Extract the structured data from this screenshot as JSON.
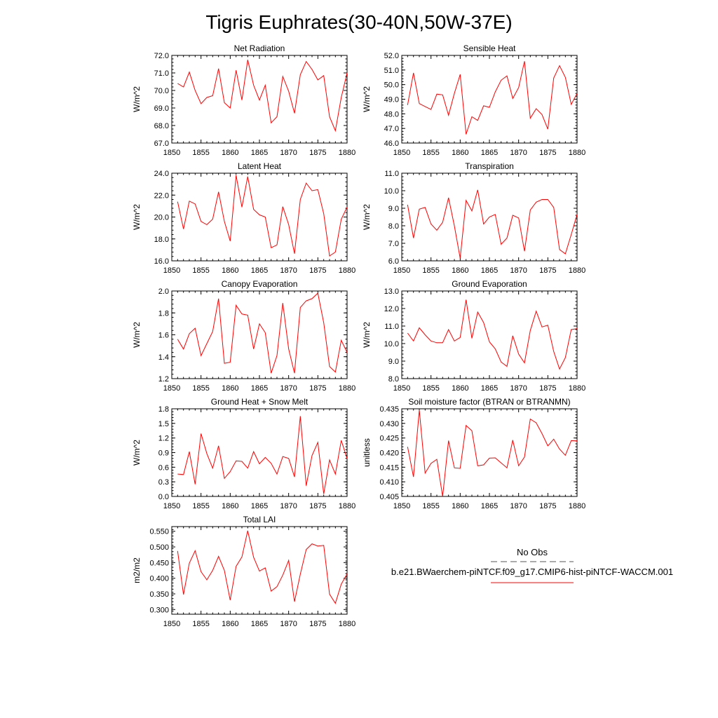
{
  "figure_title": "Tigris Euphrates(30-40N,50W-37E)",
  "legend": {
    "obs_label": "No Obs",
    "obs_color": "#555555",
    "model_label": "b.e21.BWaerchem-piNTCF.f09_g17.CMIP6-hist-piNTCF-WACCM.001",
    "model_color": "#ff0000"
  },
  "chart_data": [
    {
      "type": "line",
      "title": "Net Radiation",
      "ylabel": "W/m^2",
      "xlim": [
        1850,
        1880
      ],
      "ylim": [
        67.0,
        72.0
      ],
      "xticks": [
        "1850",
        "1855",
        "1860",
        "1865",
        "1870",
        "1875",
        "1880"
      ],
      "yticks": [
        "67.0",
        "68.0",
        "69.0",
        "70.0",
        "71.0",
        "72.0"
      ],
      "series": [
        {
          "color": "#ff0000",
          "x": [
            1851,
            1852,
            1853,
            1854,
            1855,
            1856,
            1857,
            1858,
            1859,
            1860,
            1861,
            1862,
            1863,
            1864,
            1865,
            1866,
            1867,
            1868,
            1869,
            1870,
            1871,
            1872,
            1873,
            1874,
            1875,
            1876,
            1877,
            1878,
            1879,
            1880
          ],
          "values": [
            70.4,
            70.2,
            71.05,
            70.0,
            69.25,
            69.6,
            69.7,
            71.25,
            69.3,
            69.0,
            71.15,
            69.45,
            71.75,
            70.3,
            69.45,
            70.3,
            68.15,
            68.5,
            70.8,
            69.95,
            68.7,
            70.9,
            71.65,
            71.2,
            70.6,
            70.85,
            68.5,
            67.7,
            69.6,
            71.0
          ]
        }
      ]
    },
    {
      "type": "line",
      "title": "Sensible Heat",
      "ylabel": "W/m^2",
      "xlim": [
        1850,
        1880
      ],
      "ylim": [
        46.0,
        52.0
      ],
      "xticks": [
        "1850",
        "1855",
        "1860",
        "1865",
        "1870",
        "1875",
        "1880"
      ],
      "yticks": [
        "46.0",
        "47.0",
        "48.0",
        "49.0",
        "50.0",
        "51.0",
        "52.0"
      ],
      "series": [
        {
          "color": "#ff0000",
          "x": [
            1851,
            1852,
            1853,
            1854,
            1855,
            1856,
            1857,
            1858,
            1859,
            1860,
            1861,
            1862,
            1863,
            1864,
            1865,
            1866,
            1867,
            1868,
            1869,
            1870,
            1871,
            1872,
            1873,
            1874,
            1875,
            1876,
            1877,
            1878,
            1879,
            1880
          ],
          "values": [
            48.6,
            50.8,
            48.7,
            48.5,
            48.3,
            49.35,
            49.3,
            47.9,
            49.4,
            50.7,
            46.6,
            47.8,
            47.55,
            48.55,
            48.45,
            49.5,
            50.3,
            50.6,
            49.05,
            49.8,
            51.6,
            47.7,
            48.35,
            47.95,
            46.95,
            50.45,
            51.3,
            50.5,
            48.65,
            49.4
          ]
        }
      ]
    },
    {
      "type": "line",
      "title": "Latent Heat",
      "ylabel": "W/m^2",
      "xlim": [
        1850,
        1880
      ],
      "ylim": [
        16.0,
        24.0
      ],
      "xticks": [
        "1850",
        "1855",
        "1860",
        "1865",
        "1870",
        "1875",
        "1880"
      ],
      "yticks": [
        "16.0",
        "18.0",
        "20.0",
        "22.0",
        "24.0"
      ],
      "series": [
        {
          "color": "#ff0000",
          "x": [
            1851,
            1852,
            1853,
            1854,
            1855,
            1856,
            1857,
            1858,
            1859,
            1860,
            1861,
            1862,
            1863,
            1864,
            1865,
            1866,
            1867,
            1868,
            1869,
            1870,
            1871,
            1872,
            1873,
            1874,
            1875,
            1876,
            1877,
            1878,
            1879,
            1880
          ],
          "values": [
            21.4,
            18.9,
            21.45,
            21.2,
            19.6,
            19.3,
            19.8,
            22.3,
            19.6,
            17.8,
            23.8,
            20.9,
            23.7,
            20.7,
            20.2,
            20.0,
            17.2,
            17.45,
            20.95,
            19.3,
            16.65,
            21.6,
            23.1,
            22.4,
            22.5,
            20.3,
            16.45,
            16.8,
            19.8,
            20.9
          ]
        }
      ]
    },
    {
      "type": "line",
      "title": "Transpiration",
      "ylabel": "W/m^2",
      "xlim": [
        1850,
        1880
      ],
      "ylim": [
        6.0,
        11.0
      ],
      "xticks": [
        "1850",
        "1855",
        "1860",
        "1865",
        "1870",
        "1875",
        "1880"
      ],
      "yticks": [
        "6.0",
        "7.0",
        "8.0",
        "9.0",
        "10.0",
        "11.0"
      ],
      "series": [
        {
          "color": "#ff0000",
          "x": [
            1851,
            1852,
            1853,
            1854,
            1855,
            1856,
            1857,
            1858,
            1859,
            1860,
            1861,
            1862,
            1863,
            1864,
            1865,
            1866,
            1867,
            1868,
            1869,
            1870,
            1871,
            1872,
            1873,
            1874,
            1875,
            1876,
            1877,
            1878,
            1879,
            1880
          ],
          "values": [
            9.2,
            7.3,
            8.95,
            9.05,
            8.1,
            7.75,
            8.2,
            9.6,
            8.0,
            6.15,
            9.45,
            8.85,
            10.05,
            8.1,
            8.5,
            8.65,
            6.95,
            7.3,
            8.6,
            8.45,
            6.55,
            8.9,
            9.35,
            9.5,
            9.5,
            9.05,
            6.65,
            6.4,
            7.5,
            8.65
          ]
        }
      ]
    },
    {
      "type": "line",
      "title": "Canopy Evaporation",
      "ylabel": "W/m^2",
      "xlim": [
        1850,
        1880
      ],
      "ylim": [
        1.2,
        2.0
      ],
      "xticks": [
        "1850",
        "1855",
        "1860",
        "1865",
        "1870",
        "1875",
        "1880"
      ],
      "yticks": [
        "1.2",
        "1.4",
        "1.6",
        "1.8",
        "2.0"
      ],
      "series": [
        {
          "color": "#ff0000",
          "x": [
            1851,
            1852,
            1853,
            1854,
            1855,
            1856,
            1857,
            1858,
            1859,
            1860,
            1861,
            1862,
            1863,
            1864,
            1865,
            1866,
            1867,
            1868,
            1869,
            1870,
            1871,
            1872,
            1873,
            1874,
            1875,
            1876,
            1877,
            1878,
            1879,
            1880
          ],
          "values": [
            1.56,
            1.47,
            1.61,
            1.66,
            1.41,
            1.52,
            1.63,
            1.93,
            1.34,
            1.35,
            1.87,
            1.79,
            1.78,
            1.47,
            1.7,
            1.62,
            1.25,
            1.41,
            1.89,
            1.47,
            1.25,
            1.85,
            1.91,
            1.93,
            1.98,
            1.71,
            1.31,
            1.26,
            1.55,
            1.44
          ]
        }
      ]
    },
    {
      "type": "line",
      "title": "Ground Evaporation",
      "ylabel": "W/m^2",
      "xlim": [
        1850,
        1880
      ],
      "ylim": [
        8.0,
        13.0
      ],
      "xticks": [
        "1850",
        "1855",
        "1860",
        "1865",
        "1870",
        "1875",
        "1880"
      ],
      "yticks": [
        "8.0",
        "9.0",
        "10.0",
        "11.0",
        "12.0",
        "13.0"
      ],
      "series": [
        {
          "color": "#ff0000",
          "x": [
            1851,
            1852,
            1853,
            1854,
            1855,
            1856,
            1857,
            1858,
            1859,
            1860,
            1861,
            1862,
            1863,
            1864,
            1865,
            1866,
            1867,
            1868,
            1869,
            1870,
            1871,
            1872,
            1873,
            1874,
            1875,
            1876,
            1877,
            1878,
            1879,
            1880
          ],
          "values": [
            10.6,
            10.15,
            10.9,
            10.5,
            10.15,
            10.05,
            10.05,
            10.8,
            10.15,
            10.35,
            12.5,
            10.3,
            11.8,
            11.2,
            10.1,
            9.7,
            8.95,
            8.7,
            10.45,
            9.4,
            8.9,
            10.75,
            11.85,
            10.95,
            11.05,
            9.55,
            8.55,
            9.2,
            10.8,
            10.85
          ]
        }
      ]
    },
    {
      "type": "line",
      "title": "Ground Heat + Snow Melt",
      "ylabel": "W/m^2",
      "xlim": [
        1850,
        1880
      ],
      "ylim": [
        0.0,
        1.8
      ],
      "xticks": [
        "1850",
        "1855",
        "1860",
        "1865",
        "1870",
        "1875",
        "1880"
      ],
      "yticks": [
        "0.0",
        "0.3",
        "0.6",
        "0.9",
        "1.2",
        "1.5",
        "1.8"
      ],
      "series": [
        {
          "color": "#ff0000",
          "x": [
            1851,
            1852,
            1853,
            1854,
            1855,
            1856,
            1857,
            1858,
            1859,
            1860,
            1861,
            1862,
            1863,
            1864,
            1865,
            1866,
            1867,
            1868,
            1869,
            1870,
            1871,
            1872,
            1873,
            1874,
            1875,
            1876,
            1877,
            1878,
            1879,
            1880
          ],
          "values": [
            0.46,
            0.45,
            0.92,
            0.25,
            1.29,
            0.88,
            0.58,
            1.04,
            0.37,
            0.51,
            0.73,
            0.72,
            0.58,
            0.92,
            0.67,
            0.8,
            0.68,
            0.46,
            0.82,
            0.78,
            0.4,
            1.65,
            0.22,
            0.84,
            1.11,
            0.05,
            0.75,
            0.46,
            1.15,
            0.78
          ]
        }
      ]
    },
    {
      "type": "line",
      "title": "Soil moisture factor (BTRAN or BTRANMN)",
      "ylabel": "unitless",
      "xlim": [
        1850,
        1880
      ],
      "ylim": [
        0.405,
        0.435
      ],
      "xticks": [
        "1850",
        "1855",
        "1860",
        "1865",
        "1870",
        "1875",
        "1880"
      ],
      "yticks": [
        "0.405",
        "0.410",
        "0.415",
        "0.420",
        "0.425",
        "0.430",
        "0.435"
      ],
      "series": [
        {
          "color": "#ff0000",
          "x": [
            1851,
            1852,
            1853,
            1854,
            1855,
            1856,
            1857,
            1858,
            1859,
            1860,
            1861,
            1862,
            1863,
            1864,
            1865,
            1866,
            1867,
            1868,
            1869,
            1870,
            1871,
            1872,
            1873,
            1874,
            1875,
            1876,
            1877,
            1878,
            1879,
            1880
          ],
          "values": [
            0.422,
            0.4117,
            0.4346,
            0.413,
            0.4163,
            0.4177,
            0.405,
            0.4241,
            0.4148,
            0.4146,
            0.4293,
            0.4275,
            0.4155,
            0.4158,
            0.4181,
            0.4182,
            0.4165,
            0.4148,
            0.4243,
            0.4155,
            0.4185,
            0.4315,
            0.4302,
            0.4265,
            0.4223,
            0.4246,
            0.4212,
            0.4191,
            0.4241,
            0.424
          ]
        }
      ]
    },
    {
      "type": "line",
      "title": "Total LAI",
      "ylabel": "m2/m2",
      "xlim": [
        1850,
        1880
      ],
      "ylim": [
        0.285,
        0.565
      ],
      "xticks": [
        "1850",
        "1855",
        "1860",
        "1865",
        "1870",
        "1875",
        "1880"
      ],
      "yticks": [
        "0.300",
        "0.350",
        "0.400",
        "0.450",
        "0.500",
        "0.550"
      ],
      "series": [
        {
          "color": "#ff0000",
          "x": [
            1851,
            1852,
            1853,
            1854,
            1855,
            1856,
            1857,
            1858,
            1859,
            1860,
            1861,
            1862,
            1863,
            1864,
            1865,
            1866,
            1867,
            1868,
            1869,
            1870,
            1871,
            1872,
            1873,
            1874,
            1875,
            1876,
            1877,
            1878,
            1879,
            1880
          ],
          "values": [
            0.487,
            0.348,
            0.448,
            0.488,
            0.421,
            0.395,
            0.425,
            0.47,
            0.425,
            0.33,
            0.438,
            0.468,
            0.552,
            0.467,
            0.423,
            0.433,
            0.359,
            0.373,
            0.41,
            0.457,
            0.325,
            0.413,
            0.492,
            0.51,
            0.503,
            0.505,
            0.349,
            0.32,
            0.381,
            0.414
          ]
        }
      ]
    }
  ]
}
